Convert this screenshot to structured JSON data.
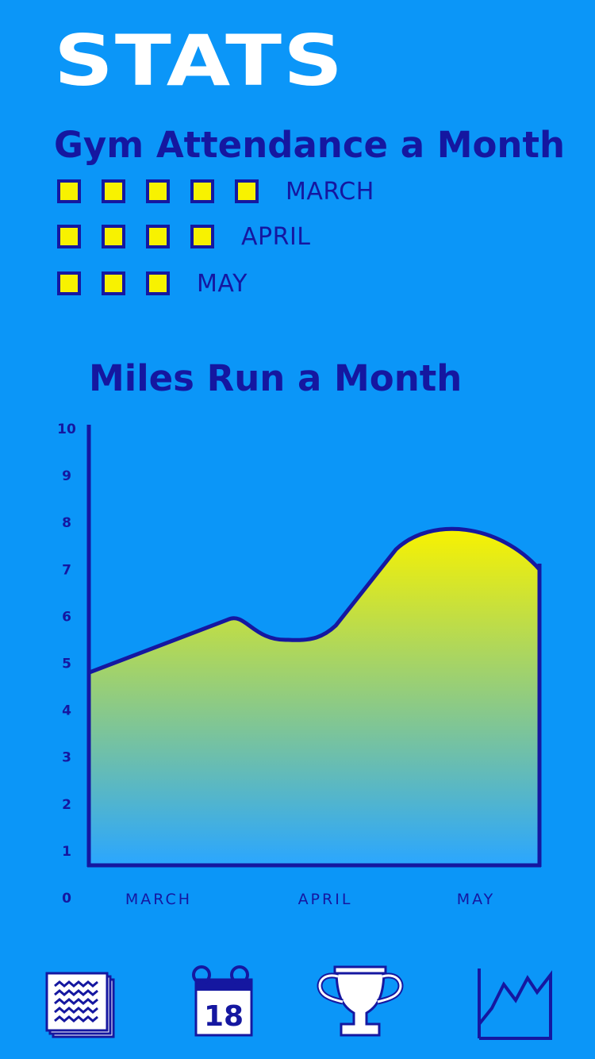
{
  "header": {
    "title": "STATS"
  },
  "attendance": {
    "title": "Gym Attendance a Month",
    "rows": [
      {
        "month": "MARCH",
        "count": 5
      },
      {
        "month": "APRIL",
        "count": 4
      },
      {
        "month": "MAY",
        "count": 3
      }
    ]
  },
  "miles": {
    "title": "Miles Run a Month"
  },
  "chart_data": {
    "type": "area",
    "title": "Miles Run a Month",
    "xlabel": "",
    "ylabel": "",
    "ylim": [
      0,
      10
    ],
    "yticks": [
      "0",
      "1",
      "2",
      "3",
      "4",
      "5",
      "6",
      "7",
      "8",
      "9",
      "10"
    ],
    "categories": [
      "MARCH",
      "APRIL",
      "MAY"
    ],
    "x": [
      0,
      0.33,
      0.46,
      0.84,
      1.0
    ],
    "values": [
      4.8,
      6.0,
      5.5,
      7.8,
      7.0
    ],
    "grid": false,
    "colors": {
      "line": "#1517a0",
      "fill_top": "#f8f200",
      "fill_bottom": "#2aa6ff"
    }
  },
  "nav": {
    "items": [
      {
        "icon": "notes-stack-icon"
      },
      {
        "icon": "calendar-icon",
        "label": "18"
      },
      {
        "icon": "trophy-icon"
      },
      {
        "icon": "stats-chart-icon"
      }
    ]
  },
  "colors": {
    "background": "#0b96f8",
    "accent": "#1517a0",
    "highlight": "#f8f200",
    "white": "#ffffff"
  }
}
